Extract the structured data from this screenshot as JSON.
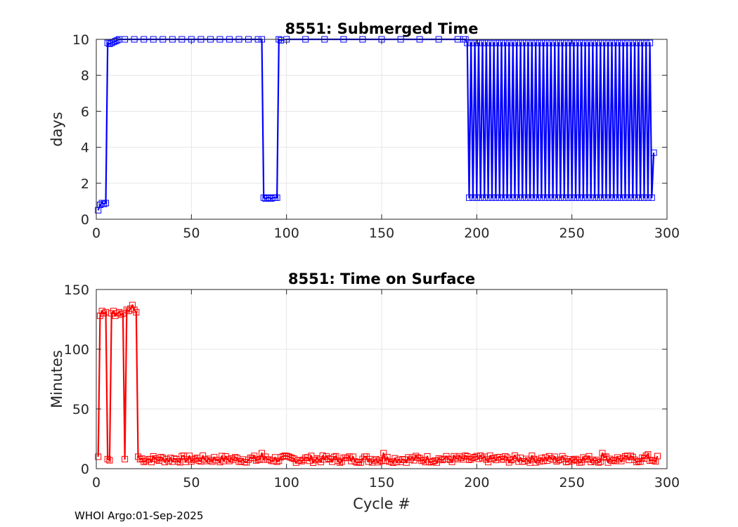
{
  "footer": "WHOI Argo:01-Sep-2025",
  "chart_data": [
    {
      "type": "line",
      "title": "8551: Submerged Time",
      "xlabel": "",
      "ylabel": "days",
      "xlim": [
        0,
        300
      ],
      "ylim": [
        0,
        10
      ],
      "xticks": [
        0,
        50,
        100,
        150,
        200,
        250,
        300
      ],
      "yticks": [
        0,
        2,
        4,
        6,
        8,
        10
      ],
      "grid": true,
      "marker": "square",
      "color": "#0000ff",
      "series": [
        {
          "x": [
            1,
            2,
            3,
            4,
            5,
            6,
            7,
            8,
            9,
            10,
            11,
            12,
            15,
            20,
            25,
            30,
            35,
            40,
            45,
            50,
            55,
            60,
            65,
            70,
            75,
            80,
            85,
            87,
            88,
            89,
            90,
            91,
            92,
            93,
            94,
            95,
            96,
            97,
            100,
            110,
            120,
            130,
            140,
            150,
            160,
            170,
            180,
            190,
            193,
            194
          ],
          "y": [
            0.5,
            0.8,
            0.9,
            0.85,
            0.9,
            9.8,
            9.75,
            9.8,
            9.85,
            9.9,
            9.95,
            10,
            10,
            10,
            10,
            10,
            10,
            10,
            10,
            10,
            10,
            10,
            10,
            10,
            10,
            10,
            10,
            10,
            1.2,
            1.15,
            1.2,
            1.2,
            1.15,
            1.2,
            1.2,
            1.2,
            10,
            9.95,
            10,
            10,
            10,
            10,
            10,
            10,
            10,
            10,
            10,
            10,
            10,
            10
          ]
        },
        {
          "x_start": 195,
          "x_end": 293,
          "pattern": "alternating",
          "high": 9.8,
          "low": 1.2,
          "last": 3.7
        }
      ]
    },
    {
      "type": "line",
      "title": "8551: Time on Surface",
      "xlabel": "Cycle #",
      "ylabel": "Minutes",
      "xlim": [
        0,
        300
      ],
      "ylim": [
        0,
        150
      ],
      "xticks": [
        0,
        50,
        100,
        150,
        200,
        250,
        300
      ],
      "yticks": [
        0,
        50,
        100,
        150
      ],
      "grid": true,
      "marker": "square",
      "color": "#ff0000",
      "series": [
        {
          "x": [
            1,
            2,
            3,
            4,
            5,
            6,
            7,
            8,
            9,
            10,
            11,
            12,
            13,
            14,
            15,
            16,
            17,
            18,
            19,
            20,
            21,
            22
          ],
          "y": [
            10,
            128,
            132,
            130,
            131,
            8,
            7,
            130,
            132,
            128,
            130,
            131,
            129,
            130,
            8,
            133,
            132,
            134,
            137,
            133,
            131,
            10
          ]
        },
        {
          "x_start": 23,
          "x_end": 295,
          "pattern": "noise",
          "base": 8,
          "amplitude": 3,
          "spikes": [
            [
              87,
              13
            ],
            [
              151,
              13
            ],
            [
              266,
              13
            ],
            [
              290,
              12
            ]
          ]
        }
      ]
    }
  ]
}
